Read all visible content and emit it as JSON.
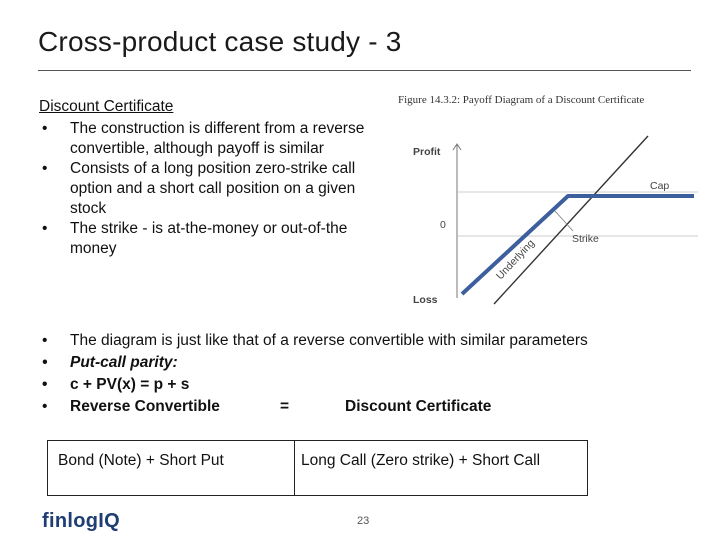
{
  "slide": {
    "title": "Cross-product case study - 3",
    "section_title": "Discount Certificate",
    "top_bullets": [
      "The construction is different from a reverse convertible, although payoff is similar",
      "Consists of a long position zero-strike call option and a short call position on a given stock",
      "The strike - is at-the-money or out-of-the money"
    ],
    "bottom_bullets": {
      "b1": "The diagram is just like that of a reverse convertible with similar parameters",
      "b2": "Put-call parity:",
      "b3": "c + PV(x) = p + s",
      "b4_left": "Reverse Convertible",
      "b4_mid": "=",
      "b4_right": "Discount Certificate"
    }
  },
  "figure": {
    "caption": "Figure 14.3.2: Payoff Diagram of a Discount Certificate",
    "labels": {
      "profit": "Profit",
      "zero": "0",
      "loss": "Loss",
      "cap": "Cap",
      "strike": "Strike",
      "underlying": "Underlying"
    },
    "colors": {
      "payoff_line": "#3d5f9e",
      "underlying_line": "#333333"
    }
  },
  "table": {
    "left": "Bond (Note) + Short Put",
    "right": "Long Call (Zero strike) + Short Call"
  },
  "footer": {
    "logo": "finlogIQ",
    "page_number": "23"
  }
}
